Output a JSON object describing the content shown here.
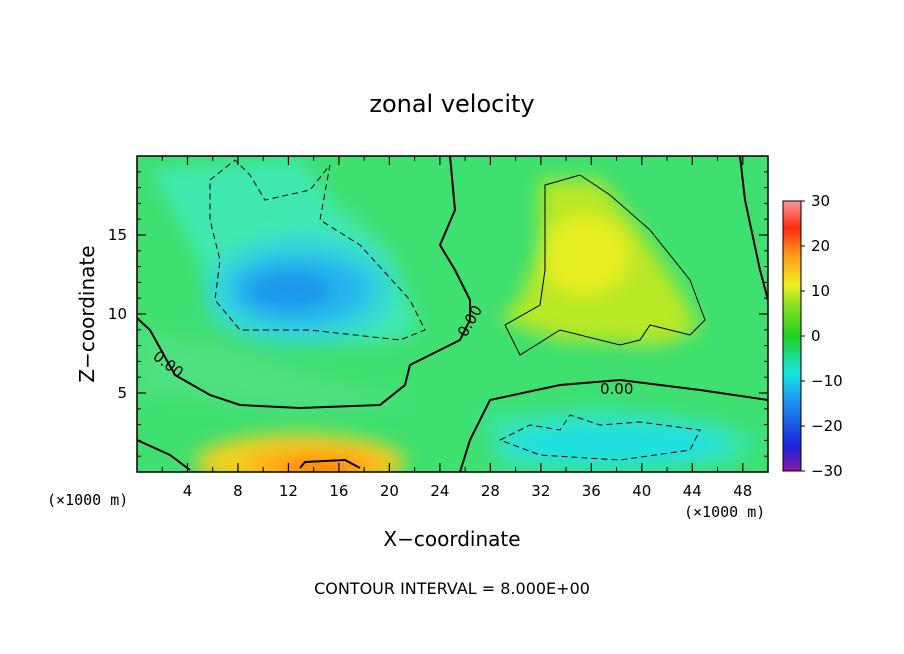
{
  "chart_data": {
    "type": "heatmap",
    "title": "zonal velocity",
    "xlabel": "X−coordinate",
    "ylabel": "Z−coordinate",
    "x_unit_left": "(×1000 m)",
    "x_unit_right": "(×1000 m)",
    "xlim": [
      0,
      50
    ],
    "ylim": [
      0,
      20
    ],
    "x_ticks": [
      4,
      8,
      12,
      16,
      20,
      24,
      28,
      32,
      36,
      40,
      44,
      48
    ],
    "x_tick_labels": [
      "4",
      "8",
      "12",
      "16",
      "20",
      "24",
      "28",
      "32",
      "36",
      "40",
      "44",
      "48"
    ],
    "y_ticks": [
      5,
      10,
      15
    ],
    "y_tick_labels": [
      "5",
      "10",
      "15"
    ],
    "colorbar": {
      "range": [
        -30,
        30
      ],
      "ticks": [
        30,
        20,
        10,
        0,
        -10,
        -20,
        -30
      ],
      "tick_labels": [
        "30",
        "20",
        "10",
        "0",
        "−10",
        "−20",
        "−30"
      ]
    },
    "contour_labels": [
      "0.00",
      "0.00",
      "0.00"
    ],
    "footer": "CONTOUR INTERVAL = 8.000E+00",
    "features": [
      {
        "x": 13,
        "z": 11.5,
        "value": -12
      },
      {
        "x": 36,
        "z": 13.5,
        "value": 11
      },
      {
        "x": 15,
        "z": 0.5,
        "value": 18
      },
      {
        "x": 38,
        "z": 2.5,
        "value": -8
      },
      {
        "x": 8,
        "z": 17,
        "value": -6
      }
    ]
  }
}
